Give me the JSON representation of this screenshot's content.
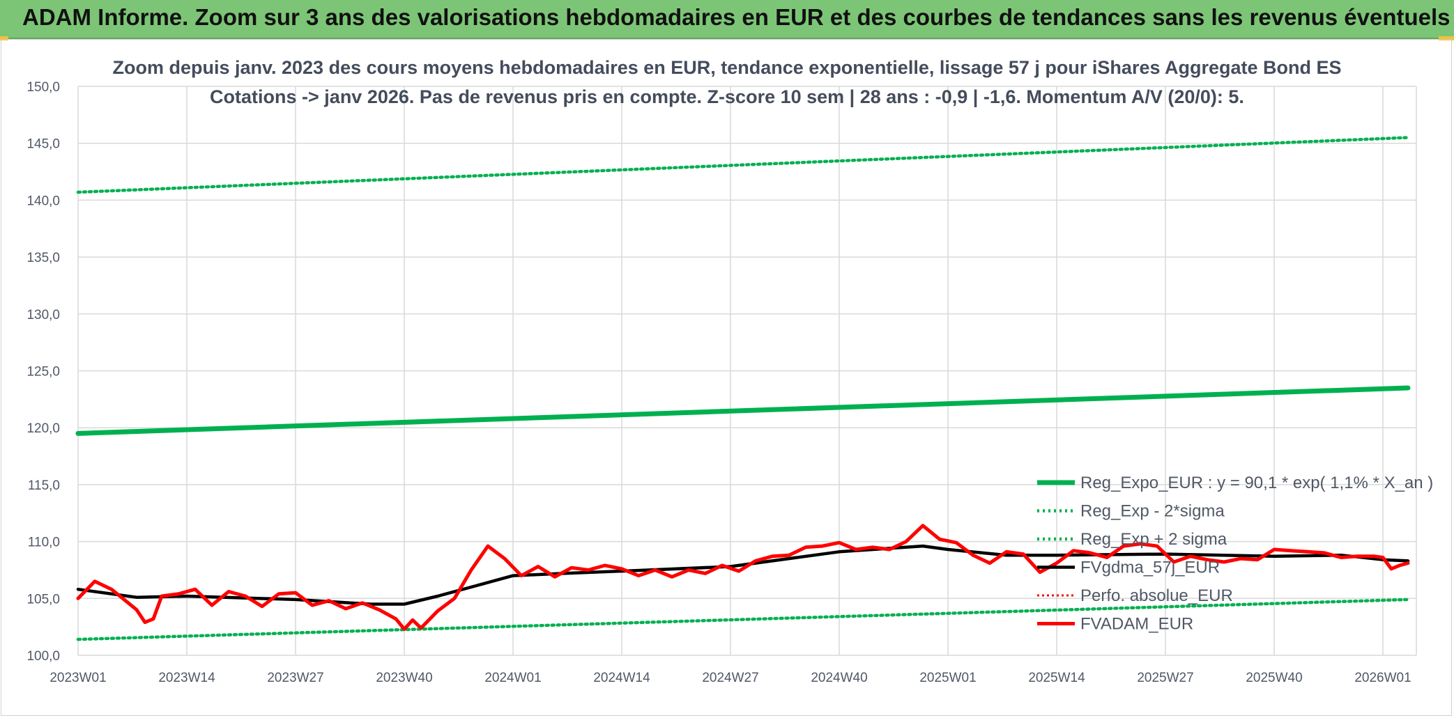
{
  "banner": {
    "title": "ADAM Informe. Zoom sur 3 ans des valorisations hebdomadaires en EUR et des courbes de tendances sans les revenus éventuels"
  },
  "colors": {
    "banner_bg": "#7cc576",
    "reg_expo": "#00b050",
    "sigma_lines": "#00b050",
    "fvgdma": "#000000",
    "perfo_absolue": "#ff0000",
    "fvadam": "#ff0000",
    "grid": "#d9d9d9"
  },
  "chart_data": {
    "type": "line",
    "title": "Zoom depuis janv. 2023 des cours moyens hebdomadaires en EUR, tendance exponentielle, lissage 57 j pour iShares Aggregate Bond ES",
    "subtitle": "Cotations -> janv 2026. Pas de revenus pris en compte. Z-score 10 sem | 28 ans : -0,9 | -1,6. Momentum A/V (20/0): 5.",
    "xlabel": "",
    "ylabel": "",
    "ylim": [
      100,
      150
    ],
    "yticks": [
      "100,0",
      "105,0",
      "110,0",
      "115,0",
      "120,0",
      "125,0",
      "130,0",
      "135,0",
      "140,0",
      "145,0",
      "150,0"
    ],
    "x_tick_labels": [
      "2023W01",
      "2023W14",
      "2023W27",
      "2023W40",
      "2024W01",
      "2024W14",
      "2024W27",
      "2024W40",
      "2025W01",
      "2025W14",
      "2025W27",
      "2025W40",
      "2026W01"
    ],
    "grid": true,
    "legend_position": "bottom-right",
    "series": [
      {
        "name": "Reg_Expo_EUR : y = 90,1 * exp( 1,1% *  X_an )",
        "style": "solid-thick",
        "x": [
          "2023W01",
          "2026W04"
        ],
        "values": [
          119.5,
          123.5
        ]
      },
      {
        "name": "Reg_Exp - 2*sigma",
        "style": "dotted",
        "x": [
          "2023W01",
          "2026W04"
        ],
        "values": [
          101.4,
          104.9
        ]
      },
      {
        "name": "Reg_Exp + 2 sigma",
        "style": "dotted",
        "x": [
          "2023W01",
          "2026W04"
        ],
        "values": [
          140.7,
          145.5
        ]
      },
      {
        "name": "FVgdma_57j_EUR",
        "style": "solid",
        "x": [
          "2023W01",
          "2023W08",
          "2023W14",
          "2023W27",
          "2023W36",
          "2023W40",
          "2023W44",
          "2023W48",
          "2024W01",
          "2024W07",
          "2024W14",
          "2024W27",
          "2024W40",
          "2024W50",
          "2025W01",
          "2025W08",
          "2025W14",
          "2025W27",
          "2025W40",
          "2025W48",
          "2026W01",
          "2026W04"
        ],
        "values": [
          105.8,
          105.1,
          105.2,
          104.9,
          104.5,
          104.5,
          105.2,
          106.0,
          107.0,
          107.2,
          107.4,
          107.8,
          109.1,
          109.6,
          109.3,
          108.8,
          108.8,
          108.9,
          108.7,
          108.8,
          108.4,
          108.3
        ]
      },
      {
        "name": "Perfo. absolue_EUR",
        "style": "dotted",
        "x": [],
        "values": []
      },
      {
        "name": "FVADAM_EUR",
        "style": "solid-thick",
        "x": [
          "2023W01",
          "2023W03",
          "2023W05",
          "2023W08",
          "2023W09",
          "2023W10",
          "2023W11",
          "2023W13",
          "2023W15",
          "2023W17",
          "2023W19",
          "2023W21",
          "2023W23",
          "2023W25",
          "2023W27",
          "2023W29",
          "2023W31",
          "2023W33",
          "2023W35",
          "2023W37",
          "2023W39",
          "2023W40",
          "2023W41",
          "2023W42",
          "2023W44",
          "2023W46",
          "2023W48",
          "2023W50",
          "2023W52",
          "2024W02",
          "2024W04",
          "2024W06",
          "2024W08",
          "2024W10",
          "2024W12",
          "2024W14",
          "2024W16",
          "2024W18",
          "2024W20",
          "2024W22",
          "2024W24",
          "2024W26",
          "2024W28",
          "2024W30",
          "2024W32",
          "2024W34",
          "2024W36",
          "2024W38",
          "2024W40",
          "2024W42",
          "2024W44",
          "2024W46",
          "2024W48",
          "2024W50",
          "2024W52",
          "2025W02",
          "2025W04",
          "2025W06",
          "2025W08",
          "2025W10",
          "2025W12",
          "2025W14",
          "2025W16",
          "2025W18",
          "2025W20",
          "2025W22",
          "2025W24",
          "2025W26",
          "2025W28",
          "2025W30",
          "2025W32",
          "2025W34",
          "2025W36",
          "2025W38",
          "2025W40",
          "2025W42",
          "2025W44",
          "2025W46",
          "2025W48",
          "2025W50",
          "2025W52",
          "2026W01",
          "2026W02",
          "2026W03",
          "2026W04"
        ],
        "values": [
          105.0,
          106.5,
          105.8,
          104.0,
          102.9,
          103.2,
          105.2,
          105.4,
          105.8,
          104.4,
          105.6,
          105.2,
          104.3,
          105.4,
          105.5,
          104.4,
          104.8,
          104.1,
          104.6,
          104.0,
          103.2,
          102.3,
          103.1,
          102.4,
          103.9,
          105.0,
          107.5,
          109.6,
          108.5,
          107.0,
          107.8,
          106.9,
          107.7,
          107.5,
          107.9,
          107.6,
          107.0,
          107.5,
          106.9,
          107.5,
          107.2,
          107.9,
          107.4,
          108.3,
          108.7,
          108.8,
          109.5,
          109.6,
          109.9,
          109.3,
          109.5,
          109.3,
          110.0,
          111.4,
          110.2,
          109.9,
          108.8,
          108.1,
          109.1,
          108.9,
          107.3,
          108.1,
          109.2,
          109.0,
          108.6,
          109.6,
          109.8,
          109.6,
          108.2,
          108.7,
          108.4,
          108.2,
          108.5,
          108.4,
          109.3,
          109.2,
          109.1,
          109.0,
          108.6,
          108.7,
          108.7,
          108.6,
          107.6,
          107.9,
          108.1
        ]
      }
    ]
  }
}
